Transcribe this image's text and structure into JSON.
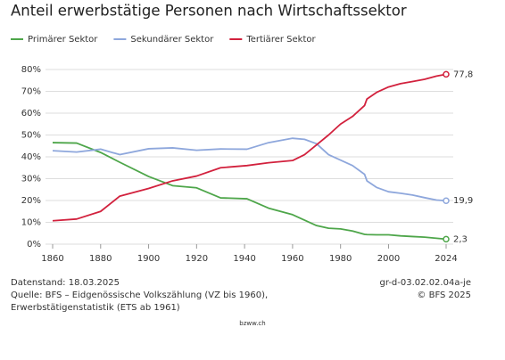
{
  "chart_data": {
    "type": "line",
    "title": "Anteil erwerbstätige Personen nach Wirtschaftssektor",
    "x": [
      1860,
      1870,
      1880,
      1888,
      1900,
      1910,
      1920,
      1930,
      1941,
      1950,
      1955,
      1960,
      1965,
      1970,
      1975,
      1980,
      1985,
      1990,
      1991,
      1995,
      2000,
      2005,
      2010,
      2015,
      2020,
      2024
    ],
    "series": [
      {
        "name": "Primärer Sektor",
        "color": "#4ea64a",
        "values": [
          46.5,
          46.3,
          42,
          37.5,
          31,
          26.8,
          25.8,
          21.2,
          20.8,
          16.5,
          15,
          13.5,
          11,
          8.5,
          7.3,
          7,
          6,
          4.5,
          4.4,
          4.3,
          4.3,
          3.8,
          3.5,
          3.2,
          2.7,
          2.3
        ],
        "value_labels": [
          null,
          null,
          null,
          null,
          null,
          null,
          null,
          null,
          null,
          null,
          null,
          null,
          null,
          null,
          null,
          null,
          null,
          null,
          null,
          null,
          null,
          null,
          null,
          null,
          null,
          "2,3"
        ]
      },
      {
        "name": "Sekundärer Sektor",
        "color": "#8ea7dc",
        "values": [
          42.8,
          42.2,
          43.5,
          41,
          43.7,
          44.1,
          43,
          43.6,
          43.5,
          46.5,
          47.5,
          48.5,
          48,
          46,
          41,
          38.5,
          36,
          32,
          29,
          26,
          24,
          23.3,
          22.5,
          21.3,
          20.2,
          19.9
        ],
        "value_labels": [
          null,
          null,
          null,
          null,
          null,
          null,
          null,
          null,
          null,
          null,
          null,
          null,
          null,
          null,
          null,
          null,
          null,
          null,
          null,
          null,
          null,
          null,
          null,
          null,
          null,
          "19,9"
        ]
      },
      {
        "name": "Tertiärer Sektor",
        "color": "#d2213d",
        "values": [
          10.7,
          11.5,
          15,
          22,
          25.5,
          29,
          31.2,
          35,
          36,
          37.3,
          37.8,
          38.3,
          41,
          45.5,
          50,
          55,
          58.5,
          63.5,
          66.5,
          69.5,
          72,
          73.5,
          74.5,
          75.5,
          77,
          77.8
        ],
        "value_labels": [
          null,
          null,
          null,
          null,
          null,
          null,
          null,
          null,
          null,
          null,
          null,
          null,
          null,
          null,
          null,
          null,
          null,
          null,
          null,
          null,
          null,
          null,
          null,
          null,
          null,
          "77,8"
        ]
      }
    ],
    "xlim": [
      1860,
      2024
    ],
    "xticks": [
      1860,
      1880,
      1900,
      1920,
      1940,
      1960,
      1980,
      2000,
      2024
    ],
    "ylim": [
      0,
      80
    ],
    "yticks": [
      {
        "value": 0,
        "label": "0%"
      },
      {
        "value": 10,
        "label": "10%"
      },
      {
        "value": 20,
        "label": "20%"
      },
      {
        "value": 30,
        "label": "30%"
      },
      {
        "value": 40,
        "label": "40%"
      },
      {
        "value": 50,
        "label": "50%"
      },
      {
        "value": 60,
        "label": "60%"
      },
      {
        "value": 70,
        "label": "70%"
      },
      {
        "value": 80,
        "label": "80%"
      }
    ],
    "grid": true
  },
  "footer": {
    "date": "Datenstand: 18.03.2025",
    "source1": "Quelle: BFS – Eidgenössische Volkszählung (VZ bis 1960),",
    "source2": "Erwerbstätigenstatistik (ETS ab 1961)",
    "code": "gr-d-03.02.02.04a-je",
    "copyright": "© BFS 2025",
    "site": "bzww.ch"
  }
}
